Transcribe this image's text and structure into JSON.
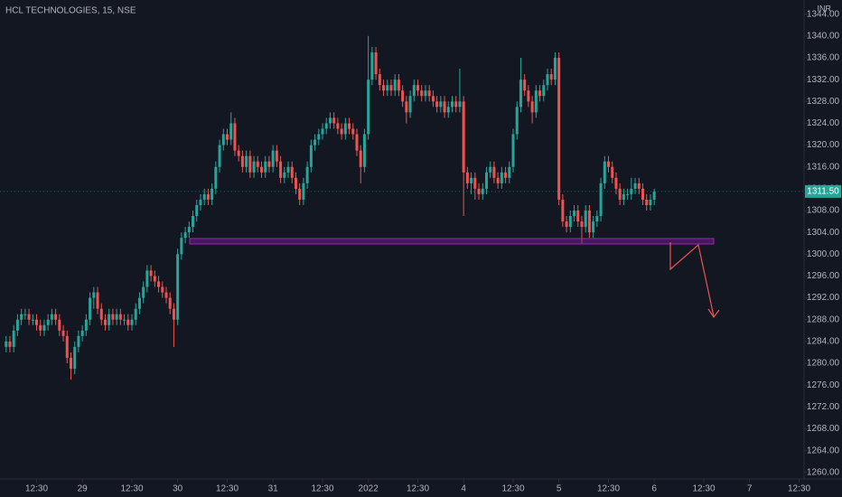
{
  "chart_data": {
    "type": "candlestick",
    "title": "HCL TECHNOLOGIES, 15, NSE",
    "currency": "INR",
    "up_color": "#26a69a",
    "down_color": "#ef5350",
    "xlim": [
      -21.6,
      189.3
    ],
    "ylim": [
      1258.8,
      1346.6
    ],
    "xticks": [
      {
        "value": -12,
        "label": "12:30"
      },
      {
        "value": 0,
        "label": "29"
      },
      {
        "value": 13,
        "label": "12:30"
      },
      {
        "value": 25,
        "label": "30"
      },
      {
        "value": 38,
        "label": "12:30"
      },
      {
        "value": 50,
        "label": "31"
      },
      {
        "value": 63,
        "label": "12:30"
      },
      {
        "value": 75,
        "label": "2022"
      },
      {
        "value": 88,
        "label": "12:30"
      },
      {
        "value": 100,
        "label": "4"
      },
      {
        "value": 113,
        "label": "12:30"
      },
      {
        "value": 125,
        "label": "5"
      },
      {
        "value": 138,
        "label": "12:30"
      },
      {
        "value": 150,
        "label": "6"
      },
      {
        "value": 163,
        "label": "12:30"
      },
      {
        "value": 175,
        "label": "7"
      },
      {
        "value": 188,
        "label": "12:30"
      }
    ],
    "yticks": [
      {
        "value": 1260,
        "label": "1260.00"
      },
      {
        "value": 1264,
        "label": "1264.00"
      },
      {
        "value": 1268,
        "label": "1268.00"
      },
      {
        "value": 1272,
        "label": "1272.00"
      },
      {
        "value": 1276,
        "label": "1276.00"
      },
      {
        "value": 1280,
        "label": "1280.00"
      },
      {
        "value": 1284,
        "label": "1284.00"
      },
      {
        "value": 1288,
        "label": "1288.00"
      },
      {
        "value": 1292,
        "label": "1292.00"
      },
      {
        "value": 1296,
        "label": "1296.00"
      },
      {
        "value": 1300,
        "label": "1300.00"
      },
      {
        "value": 1304,
        "label": "1304.00"
      },
      {
        "value": 1308,
        "label": "1308.00"
      },
      {
        "value": 1312,
        "label": "1312.00"
      },
      {
        "value": 1316,
        "label": "1316.00"
      },
      {
        "value": 1320,
        "label": "1320.00"
      },
      {
        "value": 1324,
        "label": "1324.00"
      },
      {
        "value": 1328,
        "label": "1328.00"
      },
      {
        "value": 1332,
        "label": "1332.00"
      },
      {
        "value": 1336,
        "label": "1336.00"
      },
      {
        "value": 1340,
        "label": "1340.00"
      },
      {
        "value": 1344,
        "label": "1344.00"
      }
    ],
    "last_price": {
      "value": 1311.5,
      "label": "1311.50"
    },
    "candles": [
      [
        -20,
        1283,
        1285,
        1282,
        1284
      ],
      [
        -19,
        1284,
        1285,
        1282,
        1283
      ],
      [
        -18,
        1283,
        1287,
        1282,
        1286
      ],
      [
        -17,
        1286,
        1289,
        1285,
        1288
      ],
      [
        -16,
        1288,
        1290,
        1287,
        1289
      ],
      [
        -15,
        1289,
        1290,
        1288,
        1289
      ],
      [
        -14,
        1289,
        1290,
        1287,
        1288
      ],
      [
        -13,
        1288,
        1289,
        1287,
        1288
      ],
      [
        -12,
        1288,
        1289,
        1286,
        1287
      ],
      [
        -11,
        1287,
        1288,
        1285,
        1286
      ],
      [
        -10,
        1286,
        1288,
        1285,
        1287
      ],
      [
        -9,
        1287,
        1289,
        1286,
        1288
      ],
      [
        -8,
        1288,
        1290,
        1287,
        1289
      ],
      [
        -7,
        1289,
        1290,
        1287,
        1288
      ],
      [
        -6,
        1288,
        1289,
        1285,
        1286
      ],
      [
        -5,
        1286,
        1287,
        1284,
        1285
      ],
      [
        -4,
        1285,
        1286,
        1280,
        1281
      ],
      [
        -3,
        1281,
        1282,
        1277,
        1279
      ],
      [
        -2,
        1279,
        1284,
        1278,
        1283
      ],
      [
        -1,
        1283,
        1286,
        1282,
        1285
      ],
      [
        0,
        1285,
        1287,
        1284,
        1286
      ],
      [
        1,
        1286,
        1289,
        1285,
        1288
      ],
      [
        2,
        1288,
        1293,
        1287,
        1292
      ],
      [
        3,
        1292,
        1294,
        1290,
        1293
      ],
      [
        4,
        1293,
        1294,
        1289,
        1290
      ],
      [
        5,
        1290,
        1291,
        1287,
        1288
      ],
      [
        6,
        1288,
        1289,
        1286,
        1287
      ],
      [
        7,
        1287,
        1290,
        1286,
        1289
      ],
      [
        8,
        1289,
        1290,
        1287,
        1288
      ],
      [
        9,
        1288,
        1290,
        1287,
        1289
      ],
      [
        10,
        1289,
        1290,
        1287,
        1288
      ],
      [
        11,
        1288,
        1289,
        1287,
        1288
      ],
      [
        12,
        1288,
        1289,
        1286,
        1287
      ],
      [
        13,
        1287,
        1289,
        1286,
        1288
      ],
      [
        14,
        1288,
        1291,
        1287,
        1290
      ],
      [
        15,
        1290,
        1293,
        1289,
        1292
      ],
      [
        16,
        1292,
        1295,
        1291,
        1294
      ],
      [
        17,
        1294,
        1298,
        1293,
        1297
      ],
      [
        18,
        1297,
        1298,
        1295,
        1296
      ],
      [
        19,
        1296,
        1297,
        1294,
        1295
      ],
      [
        20,
        1295,
        1296,
        1293,
        1294
      ],
      [
        21,
        1294,
        1295,
        1292,
        1293
      ],
      [
        22,
        1293,
        1294,
        1291,
        1292
      ],
      [
        23,
        1292,
        1293,
        1289,
        1290
      ],
      [
        24,
        1290,
        1291,
        1283,
        1288
      ],
      [
        25,
        1288,
        1301,
        1287,
        1300
      ],
      [
        26,
        1300,
        1304,
        1299,
        1303
      ],
      [
        27,
        1303,
        1305,
        1302,
        1304
      ],
      [
        28,
        1304,
        1306,
        1303,
        1305
      ],
      [
        29,
        1305,
        1308,
        1304,
        1307
      ],
      [
        30,
        1307,
        1310,
        1306,
        1309
      ],
      [
        31,
        1309,
        1311,
        1308,
        1310
      ],
      [
        32,
        1310,
        1312,
        1309,
        1311
      ],
      [
        33,
        1311,
        1312,
        1309,
        1310
      ],
      [
        34,
        1310,
        1313,
        1309,
        1312
      ],
      [
        35,
        1312,
        1317,
        1311,
        1316
      ],
      [
        36,
        1316,
        1321,
        1315,
        1320
      ],
      [
        37,
        1320,
        1323,
        1319,
        1322
      ],
      [
        38,
        1322,
        1323,
        1320,
        1321
      ],
      [
        39,
        1321,
        1326,
        1320,
        1324
      ],
      [
        40,
        1324,
        1325,
        1318,
        1319
      ],
      [
        41,
        1319,
        1320,
        1317,
        1318
      ],
      [
        42,
        1318,
        1319,
        1315,
        1316
      ],
      [
        43,
        1316,
        1319,
        1315,
        1318
      ],
      [
        44,
        1318,
        1319,
        1314,
        1315
      ],
      [
        45,
        1315,
        1318,
        1314,
        1317
      ],
      [
        46,
        1317,
        1318,
        1315,
        1316
      ],
      [
        47,
        1316,
        1317,
        1314,
        1315
      ],
      [
        48,
        1315,
        1318,
        1314,
        1317
      ],
      [
        49,
        1317,
        1318,
        1315,
        1316
      ],
      [
        50,
        1316,
        1320,
        1315,
        1319
      ],
      [
        51,
        1319,
        1320,
        1316,
        1317
      ],
      [
        52,
        1317,
        1318,
        1313,
        1314
      ],
      [
        53,
        1314,
        1316,
        1313,
        1315
      ],
      [
        54,
        1315,
        1317,
        1314,
        1316
      ],
      [
        55,
        1316,
        1317,
        1313,
        1314
      ],
      [
        56,
        1314,
        1315,
        1311,
        1312
      ],
      [
        57,
        1312,
        1313,
        1309,
        1310
      ],
      [
        58,
        1310,
        1314,
        1309,
        1313
      ],
      [
        59,
        1313,
        1317,
        1312,
        1316
      ],
      [
        60,
        1316,
        1321,
        1315,
        1320
      ],
      [
        61,
        1320,
        1322,
        1319,
        1321
      ],
      [
        62,
        1321,
        1323,
        1320,
        1322
      ],
      [
        63,
        1322,
        1324,
        1321,
        1323
      ],
      [
        64,
        1323,
        1325,
        1322,
        1324
      ],
      [
        65,
        1324,
        1326,
        1323,
        1325
      ],
      [
        66,
        1325,
        1326,
        1323,
        1324
      ],
      [
        67,
        1324,
        1325,
        1322,
        1323
      ],
      [
        68,
        1323,
        1324,
        1321,
        1322
      ],
      [
        69,
        1322,
        1325,
        1321,
        1324
      ],
      [
        70,
        1324,
        1325,
        1322,
        1323
      ],
      [
        71,
        1323,
        1324,
        1321,
        1322
      ],
      [
        72,
        1322,
        1323,
        1318,
        1319
      ],
      [
        73,
        1319,
        1320,
        1313,
        1316
      ],
      [
        74,
        1316,
        1323,
        1315,
        1322
      ],
      [
        75,
        1322,
        1340,
        1321,
        1332
      ],
      [
        76,
        1332,
        1338,
        1331,
        1337
      ],
      [
        77,
        1337,
        1338,
        1332,
        1333
      ],
      [
        78,
        1333,
        1334,
        1330,
        1331
      ],
      [
        79,
        1331,
        1332,
        1329,
        1330
      ],
      [
        80,
        1330,
        1332,
        1329,
        1331
      ],
      [
        81,
        1331,
        1332,
        1329,
        1330
      ],
      [
        82,
        1330,
        1333,
        1329,
        1332
      ],
      [
        83,
        1332,
        1333,
        1329,
        1330
      ],
      [
        84,
        1330,
        1331,
        1327,
        1328
      ],
      [
        85,
        1328,
        1329,
        1324,
        1326
      ],
      [
        86,
        1326,
        1330,
        1325,
        1329
      ],
      [
        87,
        1329,
        1332,
        1328,
        1331
      ],
      [
        88,
        1331,
        1332,
        1329,
        1330
      ],
      [
        89,
        1330,
        1331,
        1328,
        1329
      ],
      [
        90,
        1329,
        1331,
        1328,
        1330
      ],
      [
        91,
        1330,
        1331,
        1328,
        1329
      ],
      [
        92,
        1329,
        1330,
        1327,
        1328
      ],
      [
        93,
        1328,
        1329,
        1326,
        1327
      ],
      [
        94,
        1327,
        1329,
        1326,
        1328
      ],
      [
        95,
        1328,
        1329,
        1325,
        1326
      ],
      [
        96,
        1326,
        1328,
        1325,
        1327
      ],
      [
        97,
        1327,
        1329,
        1326,
        1328
      ],
      [
        98,
        1328,
        1329,
        1326,
        1327
      ],
      [
        99,
        1327,
        1334,
        1326,
        1328
      ],
      [
        100,
        1328,
        1329,
        1307,
        1315
      ],
      [
        101,
        1315,
        1316,
        1312,
        1313
      ],
      [
        102,
        1313,
        1315,
        1311,
        1314
      ],
      [
        103,
        1314,
        1315,
        1310,
        1312
      ],
      [
        104,
        1312,
        1313,
        1310,
        1311
      ],
      [
        105,
        1311,
        1313,
        1310,
        1312
      ],
      [
        106,
        1312,
        1316,
        1311,
        1315
      ],
      [
        107,
        1315,
        1317,
        1314,
        1316
      ],
      [
        108,
        1316,
        1317,
        1313,
        1314
      ],
      [
        109,
        1314,
        1315,
        1312,
        1313
      ],
      [
        110,
        1313,
        1316,
        1312,
        1315
      ],
      [
        111,
        1315,
        1316,
        1313,
        1314
      ],
      [
        112,
        1314,
        1317,
        1313,
        1316
      ],
      [
        113,
        1316,
        1323,
        1315,
        1322
      ],
      [
        114,
        1322,
        1328,
        1321,
        1327
      ],
      [
        115,
        1327,
        1336,
        1326,
        1332
      ],
      [
        116,
        1332,
        1333,
        1329,
        1330
      ],
      [
        117,
        1330,
        1331,
        1327,
        1328
      ],
      [
        118,
        1328,
        1329,
        1324,
        1326
      ],
      [
        119,
        1326,
        1331,
        1325,
        1330
      ],
      [
        120,
        1330,
        1331,
        1328,
        1329
      ],
      [
        121,
        1329,
        1332,
        1328,
        1331
      ],
      [
        122,
        1331,
        1334,
        1330,
        1333
      ],
      [
        123,
        1333,
        1334,
        1331,
        1332
      ],
      [
        124,
        1332,
        1337,
        1331,
        1336
      ],
      [
        125,
        1336,
        1337,
        1309,
        1310
      ],
      [
        126,
        1310,
        1311,
        1305,
        1306
      ],
      [
        127,
        1306,
        1307,
        1304,
        1305
      ],
      [
        128,
        1305,
        1308,
        1304,
        1307
      ],
      [
        129,
        1307,
        1309,
        1306,
        1308
      ],
      [
        130,
        1308,
        1309,
        1305,
        1306
      ],
      [
        131,
        1306,
        1307,
        1302,
        1305
      ],
      [
        132,
        1305,
        1309,
        1304,
        1308
      ],
      [
        133,
        1308,
        1309,
        1303,
        1304
      ],
      [
        134,
        1304,
        1307,
        1303,
        1306
      ],
      [
        135,
        1306,
        1308,
        1305,
        1307
      ],
      [
        136,
        1307,
        1314,
        1306,
        1313
      ],
      [
        137,
        1313,
        1318,
        1312,
        1317
      ],
      [
        138,
        1317,
        1318,
        1315,
        1316
      ],
      [
        139,
        1316,
        1317,
        1313,
        1314
      ],
      [
        140,
        1314,
        1315,
        1311,
        1312
      ],
      [
        141,
        1312,
        1313,
        1309,
        1310
      ],
      [
        142,
        1310,
        1312,
        1309,
        1311
      ],
      [
        143,
        1311,
        1312,
        1310,
        1311
      ],
      [
        144,
        1311,
        1314,
        1310,
        1312
      ],
      [
        145,
        1312,
        1314,
        1311,
        1313
      ],
      [
        146,
        1313,
        1314,
        1311,
        1312
      ],
      [
        147,
        1312,
        1313,
        1309,
        1310
      ],
      [
        148,
        1310,
        1311,
        1308,
        1309
      ],
      [
        149,
        1309,
        1311,
        1308,
        1310
      ],
      [
        150,
        1310,
        1312,
        1309,
        1311.5
      ]
    ]
  }
}
